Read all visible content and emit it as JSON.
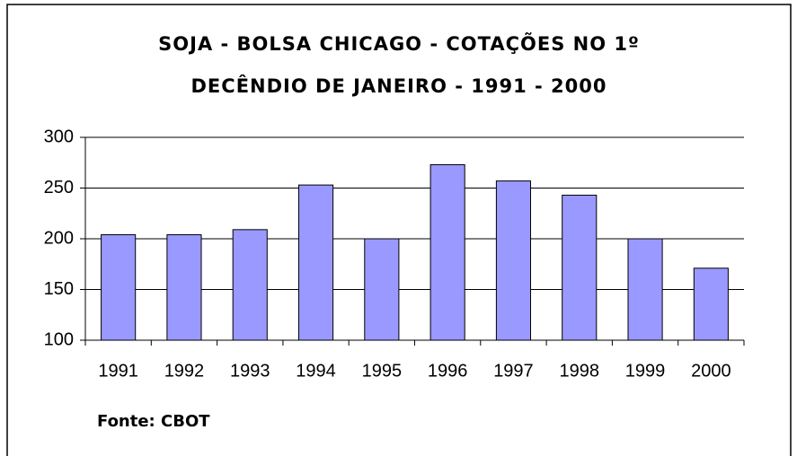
{
  "chart_data": {
    "type": "bar",
    "title": [
      "SOJA - BOLSA CHICAGO - COTAÇÕES NO  1º",
      "DECÊNDIO DE JANEIRO - 1991 - 2000"
    ],
    "categories": [
      "1991",
      "1992",
      "1993",
      "1994",
      "1995",
      "1996",
      "1997",
      "1998",
      "1999",
      "2000"
    ],
    "values": [
      204,
      204,
      209,
      253,
      200,
      273,
      257,
      243,
      200,
      171
    ],
    "color": "#9999ff",
    "ylim": [
      100,
      300
    ],
    "yticks": [
      100,
      150,
      200,
      250,
      300
    ],
    "grid": true,
    "annotation": "Fonte: CBOT"
  }
}
